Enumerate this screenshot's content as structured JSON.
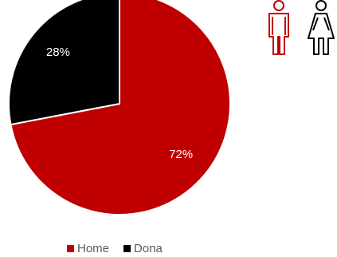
{
  "chart_data": {
    "type": "pie",
    "categories": [
      "Home",
      "Dona"
    ],
    "values": [
      72,
      28
    ],
    "value_labels": [
      "72%",
      "28%"
    ],
    "colors": [
      "#c00000",
      "#000000"
    ],
    "label_color": "#ffffff",
    "start_angle_degrees": 0,
    "direction": "clockwise",
    "legend_position": "bottom",
    "title": ""
  },
  "legend": {
    "items": [
      {
        "label": "Home",
        "color": "#c00000"
      },
      {
        "label": "Dona",
        "color": "#000000"
      }
    ]
  },
  "icons": {
    "man": {
      "name": "man-icon",
      "color": "#c00000"
    },
    "woman": {
      "name": "woman-icon",
      "color": "#000000"
    }
  }
}
